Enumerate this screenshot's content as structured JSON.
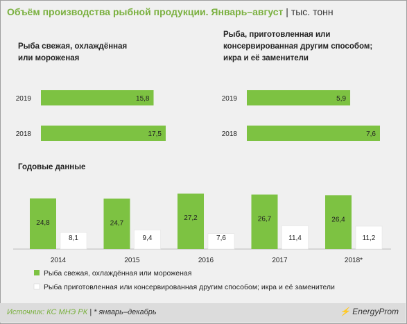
{
  "header": {
    "title": "Объём производства рыбной продукции. Январь–август",
    "separator": "|",
    "unit": "тыс. тонн"
  },
  "colors": {
    "green": "#7dc242",
    "white": "#ffffff",
    "title_green": "#7ab03f"
  },
  "chart_data": [
    {
      "type": "bar",
      "orientation": "horizontal",
      "title": "Рыба свежая, охлаждённая или мороженая",
      "categories": [
        "2019",
        "2018"
      ],
      "values": [
        15.8,
        17.5
      ],
      "value_labels": [
        "15,8",
        "17,5"
      ]
    },
    {
      "type": "bar",
      "orientation": "horizontal",
      "title": "Рыба, приготовленная или консервированная другим способом; икра и её заменители",
      "title_lines": [
        "Рыба, приготовленная  или",
        "консервированная  другим способом;",
        "икра  и её заменители"
      ],
      "categories": [
        "2019",
        "2018"
      ],
      "values": [
        5.9,
        7.6
      ],
      "value_labels": [
        "5,9",
        "7,6"
      ]
    },
    {
      "type": "bar",
      "orientation": "vertical",
      "title": "Годовые данные",
      "categories": [
        "2014",
        "2015",
        "2016",
        "2017",
        "2018*"
      ],
      "series": [
        {
          "name": "Рыба свежая, охлаждённая или мороженая",
          "color": "#7dc242",
          "values": [
            24.8,
            24.7,
            27.2,
            26.7,
            26.4
          ],
          "labels": [
            "24,8",
            "24,7",
            "27,2",
            "26,7",
            "26,4"
          ]
        },
        {
          "name": "Рыба приготовленная или консервированная другим способом; икра и её заменители",
          "color": "#ffffff",
          "values": [
            8.1,
            9.4,
            7.6,
            11.4,
            11.2
          ],
          "labels": [
            "8,1",
            "9,4",
            "7,6",
            "11,4",
            "11,2"
          ]
        }
      ],
      "legend_position": "bottom"
    }
  ],
  "panel_titles": {
    "left_lines": [
      "Рыба свежая,  охлаждённая",
      "или мороженая"
    ],
    "right_lines": [
      "Рыба, приготовленная  или",
      "консервированная  другим способом;",
      "икра  и её заменители"
    ],
    "annual": "Годовые данные"
  },
  "footer": {
    "source_label": "Источник: КС МНЭ РК",
    "separator": "|",
    "note": "* январь–декабрь",
    "brand": "EnergyProm"
  }
}
